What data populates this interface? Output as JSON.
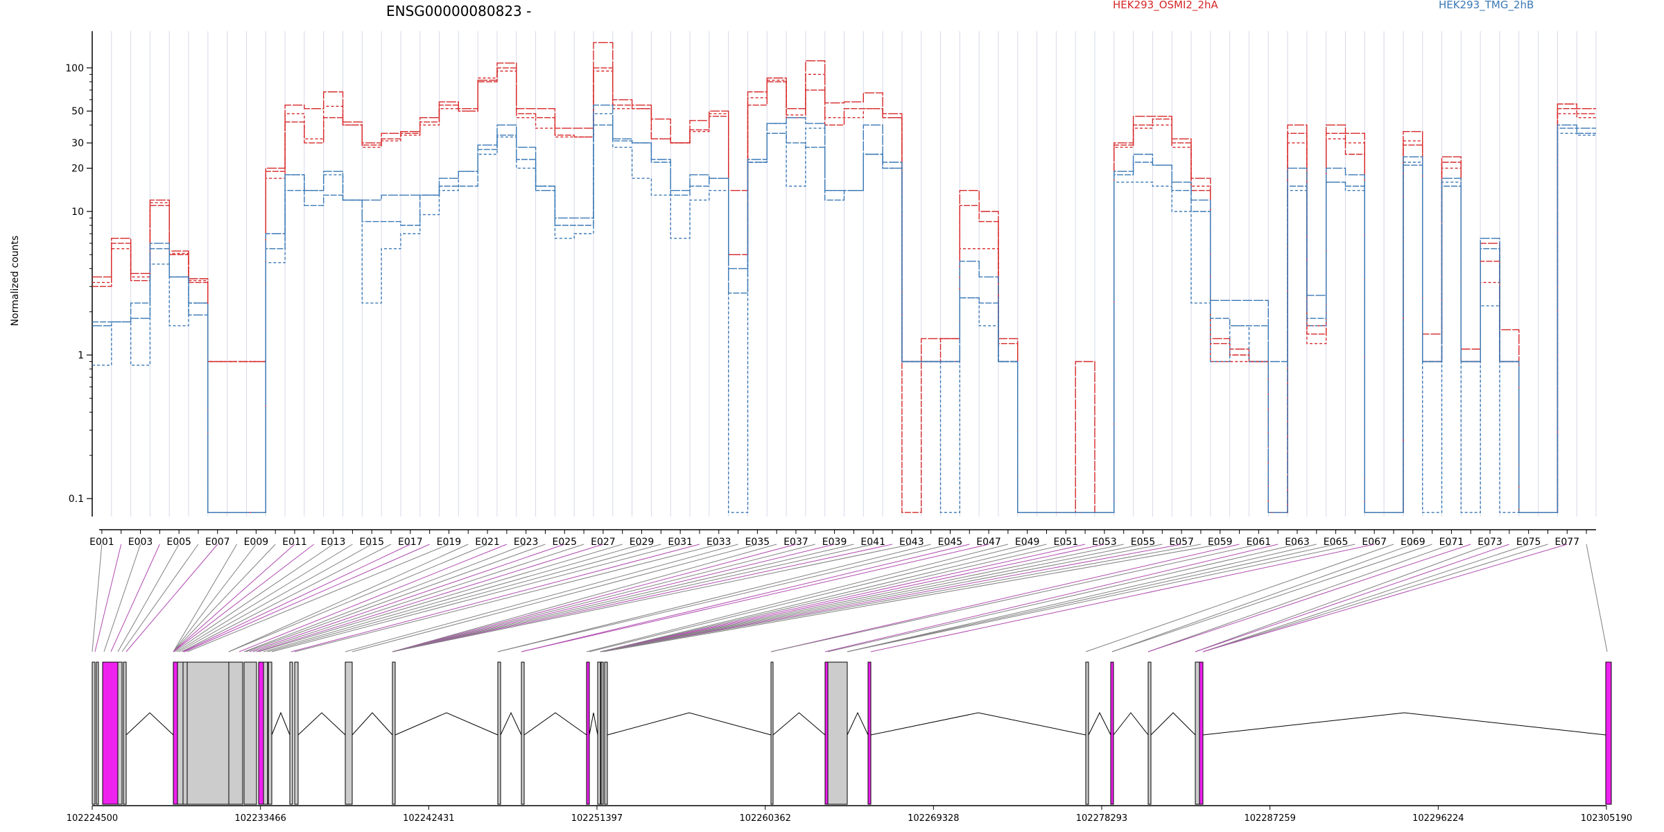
{
  "chart_data": {
    "type": "line",
    "title": "ENSG00000080823 -",
    "ylabel": "Normalized counts",
    "y_scale": "log",
    "ylim": [
      0.075,
      180
    ],
    "y_ticks": [
      0.1,
      1,
      10,
      20,
      30,
      50,
      100
    ],
    "y_tick_labels": [
      "0.1",
      "1",
      "10",
      "20",
      "30",
      "50",
      "100"
    ],
    "grid": "vertical",
    "legend_position": "top",
    "x_tick_labels": [
      "E001",
      "E003",
      "E005",
      "E007",
      "E009",
      "E011",
      "E013",
      "E015",
      "E017",
      "E019",
      "E021",
      "E023",
      "E025",
      "E027",
      "E029",
      "E031",
      "E033",
      "E035",
      "E037",
      "E039",
      "E041",
      "E043",
      "E045",
      "E047",
      "E049",
      "E051",
      "E053",
      "E055",
      "E057",
      "E059",
      "E061",
      "E063",
      "E065",
      "E067",
      "E069",
      "E071",
      "E073",
      "E075",
      "E077"
    ],
    "categories": [
      "E001",
      "E002",
      "E003",
      "E004",
      "E005",
      "E006",
      "E007",
      "E008",
      "E009",
      "E010",
      "E011",
      "E012",
      "E013",
      "E014",
      "E015",
      "E016",
      "E017",
      "E018",
      "E019",
      "E020",
      "E021",
      "E022",
      "E023",
      "E024",
      "E025",
      "E026",
      "E027",
      "E028",
      "E029",
      "E030",
      "E031",
      "E032",
      "E033",
      "E034",
      "E035",
      "E036",
      "E037",
      "E038",
      "E039",
      "E040",
      "E041",
      "E042",
      "E043",
      "E044",
      "E045",
      "E046",
      "E047",
      "E048",
      "E049",
      "E050",
      "E051",
      "E052",
      "E053",
      "E054",
      "E055",
      "E056",
      "E057",
      "E058",
      "E059",
      "E060",
      "E061",
      "E062",
      "E063",
      "E064",
      "E065",
      "E066",
      "E067",
      "E068",
      "E069",
      "E070",
      "E071",
      "E072",
      "E073",
      "E074",
      "E075",
      "E076",
      "E077",
      "E078"
    ],
    "series": [
      {
        "name": "HEK293_OSMI2_2hA",
        "color": "#d62728",
        "replicate": 1,
        "values": [
          3.5,
          6.5,
          3.7,
          12,
          5.3,
          3.4,
          0.9,
          0.9,
          0.9,
          20,
          55,
          52,
          68,
          42,
          30,
          35,
          36,
          45,
          58,
          52,
          82,
          108,
          52,
          52,
          38,
          38,
          150,
          60,
          55,
          44,
          30,
          43,
          50,
          14,
          68,
          85,
          52,
          112,
          57,
          58,
          67,
          48,
          0.9,
          1.3,
          1.3,
          14,
          10,
          1.3,
          0.08,
          0.08,
          0.08,
          0.9,
          0.08,
          30,
          46,
          46,
          32,
          17,
          1.3,
          1.1,
          0.9,
          0.08,
          40,
          1.6,
          40,
          35,
          0.08,
          0.08,
          36,
          1.4,
          24,
          1.1,
          6,
          1.5,
          0.08,
          0.08,
          56,
          52
        ]
      },
      {
        "name": "HEK293_OSMI2_2hA",
        "color": "#d62728",
        "replicate": 2,
        "values": [
          3.0,
          6.0,
          3.3,
          11,
          5.0,
          3.2,
          0.08,
          0.08,
          0.08,
          19,
          42,
          30,
          45,
          40,
          29,
          32,
          35,
          42,
          55,
          50,
          80,
          100,
          48,
          45,
          34,
          33,
          100,
          55,
          52,
          32,
          30,
          37,
          46,
          5,
          55,
          80,
          45,
          70,
          40,
          52,
          52,
          45,
          0.08,
          0.9,
          1.3,
          11,
          8.5,
          1.2,
          0.08,
          0.08,
          0.08,
          0.08,
          0.08,
          29,
          40,
          44,
          30,
          14,
          1.2,
          1.0,
          0.9,
          0.08,
          35,
          1.4,
          35,
          25,
          0.08,
          0.08,
          29,
          0.9,
          22,
          0.9,
          4.5,
          0.9,
          0.08,
          0.08,
          52,
          48
        ]
      },
      {
        "name": "HEK293_OSMI2_2hA",
        "color": "#d62728",
        "replicate": 3,
        "values": [
          3.2,
          5.5,
          3.5,
          11.5,
          5.1,
          3.3,
          0.9,
          0.9,
          0.9,
          17,
          48,
          32,
          54,
          40,
          28,
          31,
          34,
          40,
          52,
          50,
          85,
          95,
          45,
          38,
          33,
          33,
          95,
          52,
          52,
          32,
          30,
          36,
          48,
          5,
          62,
          82,
          47,
          90,
          45,
          45,
          52,
          45,
          0.9,
          0.9,
          0.9,
          5.5,
          5.5,
          0.9,
          0.08,
          0.08,
          0.08,
          0.08,
          0.08,
          28,
          38,
          40,
          28,
          15,
          0.9,
          0.9,
          0.9,
          0.08,
          30,
          1.2,
          32,
          30,
          0.08,
          0.08,
          31,
          0.9,
          20,
          0.9,
          3.2,
          0.9,
          0.08,
          0.08,
          48,
          45
        ]
      },
      {
        "name": "HEK293_TMG_2hB",
        "color": "#3a78b5",
        "replicate": 1,
        "values": [
          1.6,
          1.7,
          1.8,
          6,
          3.5,
          1.9,
          0.08,
          0.08,
          0.08,
          7,
          18,
          14,
          19,
          12,
          12,
          13,
          13,
          13,
          17,
          19,
          29,
          40,
          28,
          14,
          9,
          9,
          55,
          32,
          30,
          23,
          14,
          18,
          17,
          4,
          23,
          41,
          45,
          41,
          14,
          14,
          40,
          22,
          0.9,
          0.9,
          0.9,
          4.5,
          3.5,
          0.9,
          0.08,
          0.08,
          0.08,
          0.08,
          0.08,
          19,
          25,
          21,
          16,
          12,
          2.4,
          2.4,
          2.4,
          0.9,
          20,
          2.6,
          20,
          18,
          0.08,
          0.08,
          24,
          0.9,
          17,
          0.9,
          6.5,
          0.9,
          0.08,
          0.08,
          40,
          38
        ]
      },
      {
        "name": "HEK293_TMG_2hB",
        "color": "#3a78b5",
        "replicate": 2,
        "values": [
          1.7,
          1.7,
          2.3,
          5.5,
          3.5,
          2.3,
          0.08,
          0.08,
          0.08,
          5.5,
          14,
          11,
          13,
          12,
          8.5,
          8.5,
          8,
          13,
          15,
          15,
          27,
          34,
          23,
          15,
          8,
          8,
          40,
          31,
          30,
          22,
          13,
          15,
          17,
          2.7,
          22,
          35,
          30,
          28,
          12,
          14,
          25,
          20,
          0.9,
          0.9,
          0.9,
          2.5,
          2.3,
          0.9,
          0.08,
          0.08,
          0.08,
          0.08,
          0.08,
          18,
          22,
          21,
          14,
          10,
          1.8,
          1.6,
          1.6,
          0.08,
          15,
          1.8,
          16,
          15,
          0.08,
          0.08,
          21,
          0.9,
          15,
          0.9,
          5.5,
          0.9,
          0.08,
          0.08,
          38,
          35
        ]
      },
      {
        "name": "HEK293_TMG_2hB",
        "color": "#3a78b5",
        "replicate": 3,
        "values": [
          0.85,
          1.7,
          0.85,
          4.3,
          1.6,
          2.3,
          0.08,
          0.08,
          0.08,
          4.4,
          18,
          14,
          18,
          12,
          2.3,
          5.5,
          7,
          9.5,
          14,
          19,
          25,
          33,
          20,
          15,
          6.5,
          7,
          48,
          28,
          17,
          13,
          6.5,
          12,
          14,
          0.08,
          22,
          41,
          15,
          38,
          14,
          14,
          25,
          20,
          0.9,
          0.9,
          0.08,
          2.5,
          1.6,
          0.9,
          0.08,
          0.08,
          0.08,
          0.08,
          0.08,
          16,
          16,
          15,
          10,
          2.3,
          0.9,
          1.6,
          0.9,
          0.08,
          14,
          1.6,
          16,
          14,
          0.08,
          0.08,
          22,
          0.08,
          16,
          0.08,
          2.2,
          0.08,
          0.08,
          0.08,
          35,
          34
        ]
      }
    ],
    "gene_coordinate_ticks": [
      "102224500",
      "102233466",
      "102242431",
      "102251397",
      "102260362",
      "102269328",
      "102278293",
      "102287259",
      "102296224",
      "102305190"
    ],
    "gene_start": 102224500,
    "gene_end": 102305190,
    "exon_colors": {
      "not_significant": "#cccccc",
      "significant": "#ee22ee",
      "outline": "#000000"
    }
  },
  "legend": [
    {
      "label": "HEK293_OSMI2_2hA",
      "color": "#d62728"
    },
    {
      "label": "HEK293_TMG_2hB",
      "color": "#3a78b5"
    }
  ]
}
